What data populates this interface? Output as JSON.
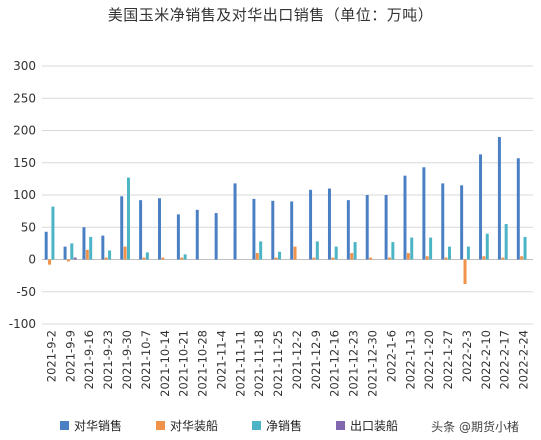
{
  "chart_data": {
    "type": "bar",
    "title": "美国玉米净销售及对华出口销售（单位：万吨）",
    "ylim": [
      -100,
      300
    ],
    "yticks": [
      -100,
      -50,
      0,
      50,
      100,
      150,
      200,
      250,
      300
    ],
    "legend_position": "bottom",
    "categories": [
      "2021-9-2",
      "2021-9-9",
      "2021-9-16",
      "2021-9-23",
      "2021-9-30",
      "2021-10-7",
      "2021-10-14",
      "2021-10-21",
      "2021-10-28",
      "2021-11-4",
      "2021-11-11",
      "2021-11-18",
      "2021-11-25",
      "2021-12-2",
      "2021-12-9",
      "2021-12-16",
      "2021-12-23",
      "2021-12-30",
      "2022-1-6",
      "2022-1-13",
      "2022-1-20",
      "2022-1-27",
      "2022-2-3",
      "2022-2-10",
      "2022-2-17",
      "2022-2-24"
    ],
    "series": [
      {
        "name": "对华销售",
        "color": "#4a7fc4",
        "values": [
          43,
          20,
          50,
          37,
          98,
          92,
          95,
          70,
          77,
          72,
          118,
          94,
          91,
          90,
          108,
          110,
          92,
          100,
          100,
          130,
          143,
          118,
          115,
          163,
          190,
          157
        ]
      },
      {
        "name": "对华装船",
        "color": "#f0924a",
        "values": [
          -8,
          -3,
          15,
          3,
          20,
          3,
          3,
          3,
          0,
          0,
          0,
          10,
          3,
          20,
          3,
          3,
          10,
          3,
          3,
          10,
          5,
          3,
          -38,
          5,
          3,
          5
        ]
      },
      {
        "name": "净销售",
        "color": "#4bb4c5",
        "values": [
          82,
          25,
          35,
          14,
          127,
          11,
          0,
          8,
          0,
          0,
          0,
          28,
          12,
          0,
          28,
          20,
          27,
          0,
          27,
          34,
          34,
          20,
          20,
          40,
          55,
          35
        ]
      },
      {
        "name": "出口装船",
        "color": "#8166b0",
        "values": [
          0,
          3,
          0,
          0,
          0,
          0,
          0,
          0,
          0,
          0,
          0,
          0,
          0,
          0,
          0,
          0,
          0,
          0,
          0,
          0,
          0,
          0,
          0,
          0,
          0,
          0
        ]
      }
    ]
  },
  "watermark": "头条 @期货小楮"
}
